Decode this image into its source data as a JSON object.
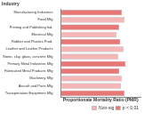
{
  "chart_data": {
    "type": "bar",
    "orientation": "horizontal",
    "stacked": true,
    "title": "Industry",
    "x_label": "Proportionate Mortality Ratio (PMR)",
    "categories": [
      "Manufacturing Industries",
      "Food Mfg",
      "Printing and Publishing Ind.",
      "Electrical Mfg",
      "Rubber and Plastics Prod.",
      "Leather and Leather Products",
      "Stone, clay, glass, concrete Mfg",
      "Primary Metal Industries Mfg",
      "Fabricated Metal Products Mfg",
      "Machinery Mfg",
      "Aircraft and Parts Mfg",
      "Transportation Equipment Mfg"
    ],
    "series": [
      {
        "name": "Non-sig",
        "color": "#f4b6b6",
        "values": [
          null,
          1.2,
          null,
          1.05,
          null,
          1.18,
          1.08,
          null,
          null,
          1.15,
          1.13,
          null
        ]
      },
      {
        "name": "p < 0.01",
        "color": "#e87878",
        "values": [
          1.15,
          null,
          1.1,
          null,
          1.12,
          null,
          null,
          1.22,
          1.1,
          null,
          null,
          1.2
        ]
      }
    ],
    "xlim": [
      0,
      1.5
    ],
    "grid": false,
    "tick_labels": "y",
    "legend": "bottom-right"
  }
}
